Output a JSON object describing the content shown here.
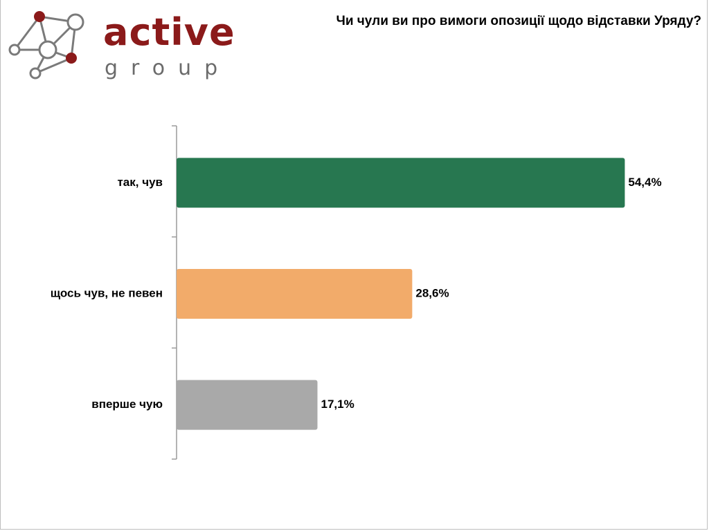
{
  "logo": {
    "word": "active",
    "sub": "group",
    "brand_color": "#8b1a1a",
    "sub_color": "#6b6b6b"
  },
  "question": "Чи чули ви про вимоги опозиції щодо відставки Уряду?",
  "chart_data": {
    "type": "bar",
    "orientation": "horizontal",
    "title": "Чи чули ви про вимоги опозиції щодо відставки Уряду?",
    "categories": [
      "так, чув",
      "щось чув, не певен",
      "вперше чую"
    ],
    "values": [
      54.4,
      28.6,
      17.1
    ],
    "value_labels": [
      "54,4%",
      "28,6%",
      "17,1%"
    ],
    "colors": [
      "#277750",
      "#f2ab6a",
      "#a9a9a9"
    ],
    "xlim": [
      0,
      60.5
    ],
    "grid": false,
    "legend": "none"
  }
}
